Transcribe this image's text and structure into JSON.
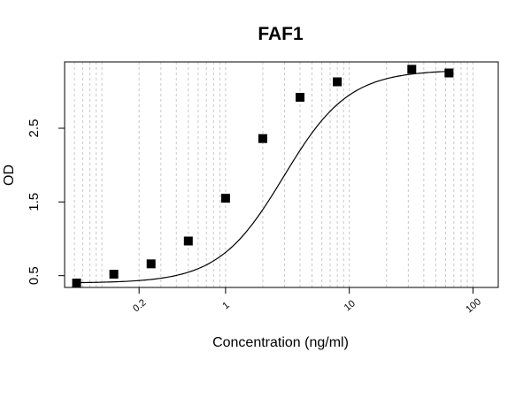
{
  "chart_data": {
    "type": "scatter",
    "title": "FAF1",
    "xlabel": "Concentration (ng/ml)",
    "ylabel": "OD",
    "x_scale": "log",
    "xlim": [
      0.05,
      160
    ],
    "ylim": [
      0.34,
      3.4
    ],
    "x_ticks": [
      {
        "value": 0.2,
        "label": "0.2"
      },
      {
        "value": 1,
        "label": "1"
      },
      {
        "value": 10,
        "label": "10"
      },
      {
        "value": 100,
        "label": "100"
      }
    ],
    "y_ticks": [
      {
        "value": 0.5,
        "label": "0.5"
      },
      {
        "value": 1.5,
        "label": "1.5"
      },
      {
        "value": 2.5,
        "label": "2.5"
      }
    ],
    "x_minor_gridlines": true,
    "points": [
      {
        "x": 0.0625,
        "y": 0.4
      },
      {
        "x": 0.125,
        "y": 0.52
      },
      {
        "x": 0.25,
        "y": 0.66
      },
      {
        "x": 0.5,
        "y": 0.97
      },
      {
        "x": 1,
        "y": 1.55
      },
      {
        "x": 2,
        "y": 2.36
      },
      {
        "x": 4,
        "y": 2.92
      },
      {
        "x": 8,
        "y": 3.13
      },
      {
        "x": 32,
        "y": 3.3
      },
      {
        "x": 64,
        "y": 3.25
      }
    ],
    "fit_curve": {
      "type": "4PL",
      "bottom": 0.4,
      "top": 3.29,
      "ec50": 2.95,
      "hill": 1.65
    },
    "colors": {
      "marker": "#000000",
      "curve": "#000000",
      "grid": "#c8c8c8"
    }
  }
}
